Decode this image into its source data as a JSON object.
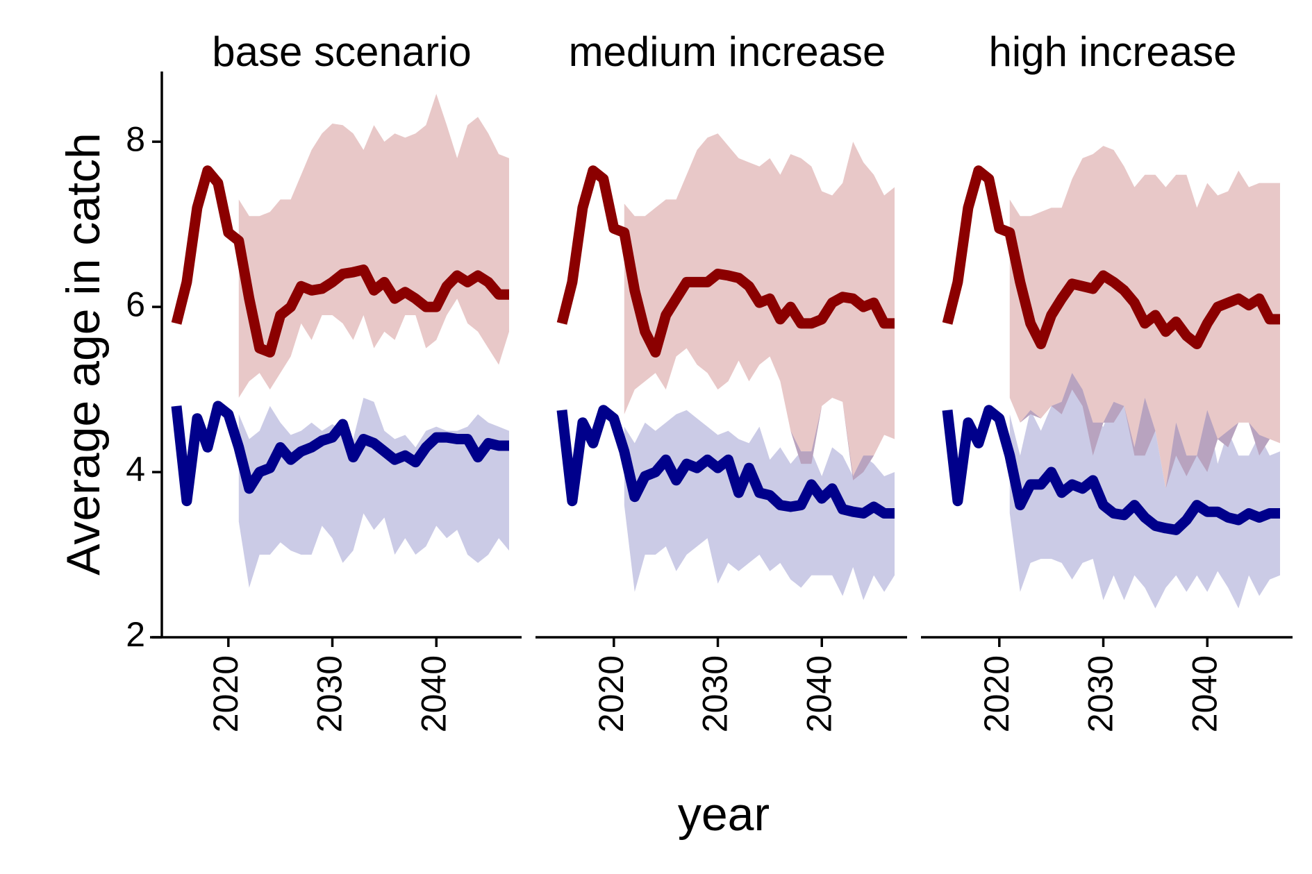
{
  "chart_data": {
    "type": "line",
    "ylabel": "Average age in catch",
    "xlabel": "year",
    "ylim": [
      2,
      8.85
    ],
    "xlim": [
      2013.6,
      2048.2
    ],
    "yticks": [
      2,
      4,
      6,
      8
    ],
    "xticks": [
      2020,
      2030,
      2040
    ],
    "grid": false,
    "legend": "none",
    "series_colors": {
      "older": "#8b0000",
      "younger": "#00008b"
    },
    "band_colors": {
      "older": "#e8c8c8",
      "younger": "#cbcbe6",
      "overlap": "#b8a3bf"
    },
    "panels": [
      {
        "title": "base scenario",
        "series": [
          {
            "color": "#8b0000",
            "x": [
              2015,
              2016,
              2017,
              2018,
              2019,
              2020,
              2021,
              2022,
              2023,
              2024,
              2025,
              2026,
              2027,
              2028,
              2029,
              2030,
              2031,
              2032,
              2033,
              2034,
              2035,
              2036,
              2037,
              2038,
              2039,
              2040,
              2041,
              2042,
              2043,
              2044,
              2045,
              2046,
              2047
            ],
            "values": [
              5.8,
              6.3,
              7.2,
              7.65,
              7.5,
              6.9,
              6.8,
              6.1,
              5.5,
              5.45,
              5.9,
              6.0,
              6.25,
              6.2,
              6.22,
              6.3,
              6.4,
              6.42,
              6.45,
              6.2,
              6.3,
              6.1,
              6.18,
              6.1,
              6.0,
              6.0,
              6.25,
              6.38,
              6.3,
              6.38,
              6.3,
              6.15,
              6.15
            ],
            "lower": [
              null,
              null,
              null,
              null,
              null,
              null,
              4.9,
              5.1,
              5.2,
              5.0,
              5.2,
              5.4,
              5.8,
              5.6,
              5.9,
              5.9,
              5.8,
              5.6,
              5.9,
              5.5,
              5.7,
              5.6,
              5.9,
              5.9,
              5.5,
              5.6,
              5.9,
              6.1,
              5.8,
              5.7,
              5.5,
              5.3,
              5.7
            ],
            "upper": [
              null,
              null,
              null,
              null,
              null,
              null,
              7.3,
              7.1,
              7.1,
              7.15,
              7.3,
              7.3,
              7.6,
              7.9,
              8.1,
              8.22,
              8.2,
              8.1,
              7.9,
              8.2,
              8.0,
              8.1,
              8.05,
              8.1,
              8.2,
              8.58,
              8.2,
              7.8,
              8.2,
              8.3,
              8.1,
              7.85,
              7.8
            ]
          },
          {
            "color": "#00008b",
            "x": [
              2015,
              2016,
              2017,
              2018,
              2019,
              2020,
              2021,
              2022,
              2023,
              2024,
              2025,
              2026,
              2027,
              2028,
              2029,
              2030,
              2031,
              2032,
              2033,
              2034,
              2035,
              2036,
              2037,
              2038,
              2039,
              2040,
              2041,
              2042,
              2043,
              2044,
              2045,
              2046,
              2047
            ],
            "values": [
              4.8,
              3.65,
              4.65,
              4.3,
              4.8,
              4.7,
              4.3,
              3.8,
              4.0,
              4.05,
              4.3,
              4.15,
              4.25,
              4.3,
              4.38,
              4.42,
              4.58,
              4.18,
              4.4,
              4.35,
              4.25,
              4.15,
              4.2,
              4.12,
              4.3,
              4.42,
              4.42,
              4.4,
              4.4,
              4.18,
              4.35,
              4.32,
              4.32
            ],
            "lower": [
              null,
              null,
              null,
              null,
              null,
              null,
              3.4,
              2.6,
              3.0,
              3.0,
              3.15,
              3.05,
              3.0,
              3.0,
              3.35,
              3.2,
              2.9,
              3.05,
              3.5,
              3.3,
              3.45,
              3.0,
              3.2,
              3.0,
              3.1,
              3.35,
              3.2,
              3.3,
              3.0,
              2.9,
              3.0,
              3.2,
              3.05
            ],
            "upper": [
              null,
              null,
              null,
              null,
              null,
              null,
              4.7,
              4.4,
              4.5,
              4.8,
              4.6,
              4.45,
              4.5,
              4.6,
              4.5,
              4.58,
              4.5,
              4.4,
              4.9,
              4.85,
              4.5,
              4.4,
              4.45,
              4.3,
              4.5,
              4.55,
              4.5,
              4.5,
              4.55,
              4.7,
              4.6,
              4.55,
              4.5
            ]
          }
        ]
      },
      {
        "title": "medium increase",
        "series": [
          {
            "color": "#8b0000",
            "x": [
              2015,
              2016,
              2017,
              2018,
              2019,
              2020,
              2021,
              2022,
              2023,
              2024,
              2025,
              2026,
              2027,
              2028,
              2029,
              2030,
              2031,
              2032,
              2033,
              2034,
              2035,
              2036,
              2037,
              2038,
              2039,
              2040,
              2041,
              2042,
              2043,
              2044,
              2045,
              2046,
              2047
            ],
            "values": [
              5.8,
              6.3,
              7.2,
              7.65,
              7.55,
              6.95,
              6.9,
              6.2,
              5.7,
              5.45,
              5.9,
              6.1,
              6.3,
              6.3,
              6.3,
              6.4,
              6.38,
              6.35,
              6.25,
              6.05,
              6.1,
              5.85,
              6.0,
              5.8,
              5.8,
              5.85,
              6.05,
              6.12,
              6.1,
              6.0,
              6.05,
              5.8,
              5.8
            ],
            "lower": [
              null,
              null,
              null,
              null,
              null,
              null,
              4.7,
              5.0,
              5.1,
              5.2,
              5.0,
              5.4,
              5.5,
              5.3,
              5.2,
              5.0,
              5.1,
              5.35,
              5.1,
              5.3,
              5.4,
              5.1,
              4.5,
              4.1,
              4.1,
              4.8,
              4.9,
              4.85,
              3.9,
              4.0,
              4.2,
              4.45,
              4.4
            ],
            "upper": [
              null,
              null,
              null,
              null,
              null,
              null,
              7.25,
              7.1,
              7.1,
              7.2,
              7.3,
              7.3,
              7.6,
              7.9,
              8.05,
              8.1,
              7.95,
              7.8,
              7.75,
              7.7,
              7.8,
              7.6,
              7.85,
              7.8,
              7.7,
              7.4,
              7.35,
              7.5,
              8.0,
              7.75,
              7.6,
              7.35,
              7.45
            ]
          },
          {
            "color": "#00008b",
            "x": [
              2015,
              2016,
              2017,
              2018,
              2019,
              2020,
              2021,
              2022,
              2023,
              2024,
              2025,
              2026,
              2027,
              2028,
              2029,
              2030,
              2031,
              2032,
              2033,
              2034,
              2035,
              2036,
              2037,
              2038,
              2039,
              2040,
              2041,
              2042,
              2043,
              2044,
              2045,
              2046,
              2047
            ],
            "values": [
              4.75,
              3.65,
              4.6,
              4.35,
              4.75,
              4.65,
              4.25,
              3.7,
              3.95,
              4.0,
              4.15,
              3.9,
              4.1,
              4.05,
              4.15,
              4.05,
              4.15,
              3.75,
              4.05,
              3.75,
              3.72,
              3.6,
              3.58,
              3.6,
              3.85,
              3.68,
              3.8,
              3.55,
              3.52,
              3.5,
              3.58,
              3.5,
              3.5
            ],
            "lower": [
              null,
              null,
              null,
              null,
              null,
              null,
              3.6,
              2.55,
              3.0,
              3.0,
              3.1,
              2.8,
              3.0,
              3.1,
              3.2,
              2.65,
              2.9,
              2.8,
              2.9,
              3.0,
              2.8,
              2.9,
              2.7,
              2.6,
              2.75,
              2.75,
              2.75,
              2.5,
              2.85,
              2.45,
              2.75,
              2.55,
              2.75
            ],
            "upper": [
              null,
              null,
              null,
              null,
              null,
              null,
              4.55,
              4.35,
              4.6,
              4.5,
              4.6,
              4.7,
              4.75,
              4.65,
              4.55,
              4.45,
              4.5,
              4.4,
              4.35,
              4.55,
              4.15,
              4.3,
              4.1,
              4.25,
              4.25,
              3.95,
              4.3,
              4.2,
              3.95,
              4.2,
              4.1,
              3.95,
              4.0
            ]
          }
        ]
      },
      {
        "title": "high increase",
        "series": [
          {
            "color": "#8b0000",
            "x": [
              2015,
              2016,
              2017,
              2018,
              2019,
              2020,
              2021,
              2022,
              2023,
              2024,
              2025,
              2026,
              2027,
              2028,
              2029,
              2030,
              2031,
              2032,
              2033,
              2034,
              2035,
              2036,
              2037,
              2038,
              2039,
              2040,
              2041,
              2042,
              2043,
              2044,
              2045,
              2046,
              2047
            ],
            "values": [
              5.8,
              6.3,
              7.2,
              7.65,
              7.55,
              6.95,
              6.9,
              6.3,
              5.8,
              5.55,
              5.9,
              6.1,
              6.28,
              6.25,
              6.22,
              6.38,
              6.3,
              6.2,
              6.05,
              5.8,
              5.9,
              5.7,
              5.82,
              5.65,
              5.55,
              5.8,
              6.0,
              6.05,
              6.1,
              6.02,
              6.1,
              5.85,
              5.85
            ],
            "lower": [
              null,
              null,
              null,
              null,
              null,
              null,
              4.9,
              4.6,
              4.7,
              4.65,
              4.8,
              4.7,
              5.0,
              4.8,
              4.2,
              4.6,
              4.6,
              4.8,
              4.2,
              4.2,
              4.5,
              3.8,
              4.2,
              3.95,
              4.2,
              4.0,
              4.4,
              4.3,
              4.6,
              4.6,
              4.2,
              4.4,
              4.35
            ],
            "upper": [
              null,
              null,
              null,
              null,
              null,
              null,
              7.3,
              7.1,
              7.1,
              7.15,
              7.2,
              7.2,
              7.55,
              7.8,
              7.85,
              7.95,
              7.9,
              7.7,
              7.45,
              7.6,
              7.6,
              7.45,
              7.6,
              7.6,
              7.2,
              7.5,
              7.35,
              7.4,
              7.65,
              7.45,
              7.5,
              7.5,
              7.5
            ]
          },
          {
            "color": "#00008b",
            "x": [
              2015,
              2016,
              2017,
              2018,
              2019,
              2020,
              2021,
              2022,
              2023,
              2024,
              2025,
              2026,
              2027,
              2028,
              2029,
              2030,
              2031,
              2032,
              2033,
              2034,
              2035,
              2036,
              2037,
              2038,
              2039,
              2040,
              2041,
              2042,
              2043,
              2044,
              2045,
              2046,
              2047
            ],
            "values": [
              4.75,
              3.65,
              4.6,
              4.35,
              4.75,
              4.65,
              4.2,
              3.6,
              3.85,
              3.85,
              4.0,
              3.75,
              3.85,
              3.8,
              3.9,
              3.6,
              3.5,
              3.48,
              3.6,
              3.45,
              3.35,
              3.32,
              3.3,
              3.42,
              3.6,
              3.52,
              3.52,
              3.45,
              3.42,
              3.5,
              3.45,
              3.5,
              3.5
            ],
            "lower": [
              null,
              null,
              null,
              null,
              null,
              null,
              3.5,
              2.55,
              2.9,
              2.95,
              2.95,
              2.9,
              2.7,
              2.9,
              2.95,
              2.45,
              2.75,
              2.45,
              2.75,
              2.6,
              2.35,
              2.6,
              2.75,
              2.55,
              2.75,
              2.55,
              2.8,
              2.6,
              2.35,
              2.75,
              2.5,
              2.7,
              2.75
            ],
            "upper": [
              null,
              null,
              null,
              null,
              null,
              null,
              4.7,
              4.2,
              4.75,
              4.5,
              4.8,
              4.85,
              5.2,
              5.0,
              4.6,
              4.55,
              4.85,
              4.8,
              4.3,
              4.9,
              4.5,
              3.8,
              4.6,
              4.2,
              4.2,
              4.75,
              4.1,
              4.5,
              4.2,
              4.2,
              4.45,
              4.2,
              4.25
            ]
          }
        ]
      }
    ]
  }
}
